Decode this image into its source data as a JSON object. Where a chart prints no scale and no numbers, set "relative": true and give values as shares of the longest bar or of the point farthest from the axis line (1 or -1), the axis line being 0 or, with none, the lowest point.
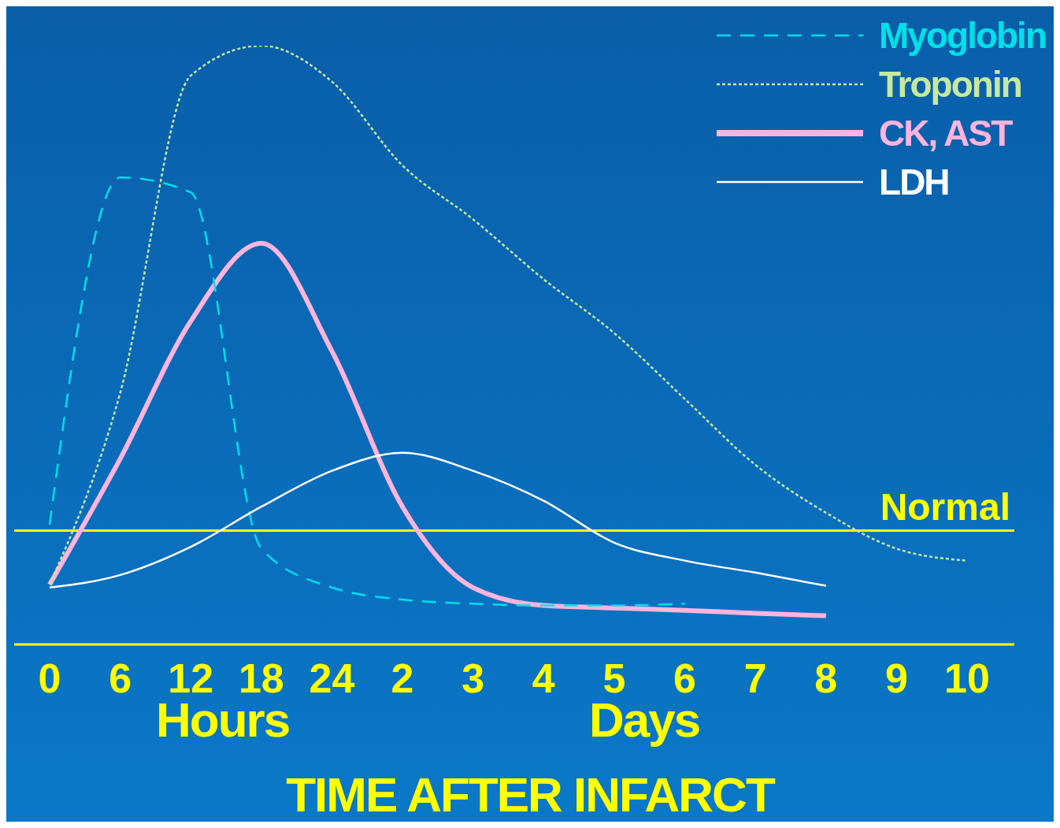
{
  "chart_data": {
    "type": "line",
    "xlabel": "TIME AFTER INFARCT",
    "relative": true,
    "categories": [
      "0",
      "6",
      "12",
      "18",
      "24",
      "2",
      "3",
      "4",
      "5",
      "6",
      "7",
      "8",
      "9",
      "10"
    ],
    "series": [
      {
        "name": "Myoglobin",
        "color": "#00e0e8",
        "line_style": "dashed",
        "values": [
          0.2,
          0.78,
          0.755,
          0.16,
          0.095,
          0.075,
          0.068,
          0.065,
          0.065,
          0.068,
          null,
          null,
          null,
          null
        ]
      },
      {
        "name": "Troponin",
        "color": "#c8e8a0",
        "line_style": "dotted",
        "values": [
          0.1,
          0.42,
          0.95,
          1.0,
          0.94,
          0.8,
          0.71,
          0.61,
          0.52,
          0.41,
          0.3,
          0.22,
          0.16,
          0.14
        ]
      },
      {
        "name": "CK, AST",
        "color": "#ffb4dc",
        "line_style": "solid",
        "values": [
          0.1,
          0.31,
          0.54,
          0.67,
          0.49,
          0.23,
          0.095,
          0.065,
          0.061,
          0.057,
          0.052,
          0.048,
          null,
          null
        ]
      },
      {
        "name": "LDH",
        "color": "#ffffff",
        "line_style": "solid",
        "values": [
          0.095,
          0.116,
          0.163,
          0.23,
          0.29,
          0.32,
          0.29,
          0.24,
          0.17,
          0.14,
          0.12,
          0.098,
          null,
          null
        ]
      }
    ],
    "ref_lines": [
      {
        "axis": "y",
        "value": 0.19,
        "label": "Normal",
        "color": "#ffff00"
      }
    ],
    "annotations": [
      "Hours",
      "Days"
    ],
    "legend": "top right",
    "marker": "none",
    "grid": false
  }
}
